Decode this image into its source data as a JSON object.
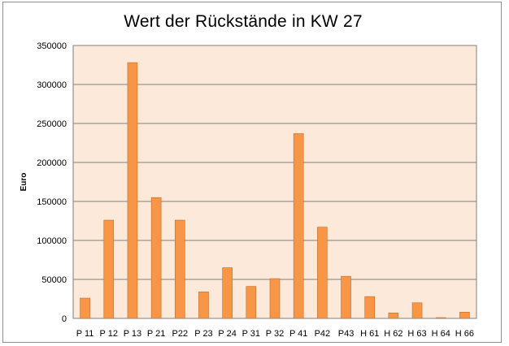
{
  "chart_data": {
    "type": "bar",
    "title": "Wert der Rückstände in KW 27",
    "xlabel": "",
    "ylabel": "Euro",
    "categories": [
      "P 11",
      "P 12",
      "P 13",
      "P 21",
      "P22",
      "P 23",
      "P 24",
      "P 31",
      "P 32",
      "P 41",
      "P42",
      "P43",
      "H 61",
      "H 62",
      "H 63",
      "H 64",
      "H 66"
    ],
    "values": [
      26000,
      126000,
      328000,
      155000,
      126000,
      34000,
      65000,
      41000,
      51000,
      237000,
      117000,
      54000,
      28000,
      7000,
      20000,
      1000,
      8000
    ],
    "ylim": [
      0,
      350000
    ],
    "yticks": [
      "0",
      "50000",
      "100000",
      "150000",
      "200000",
      "250000",
      "300000",
      "350000"
    ],
    "grid": true,
    "legend": "none",
    "colors": {
      "bar": "#f79646",
      "bar_edge": "#c56a24",
      "plot_bg": "#fde9d9",
      "grid": "#808080"
    }
  }
}
